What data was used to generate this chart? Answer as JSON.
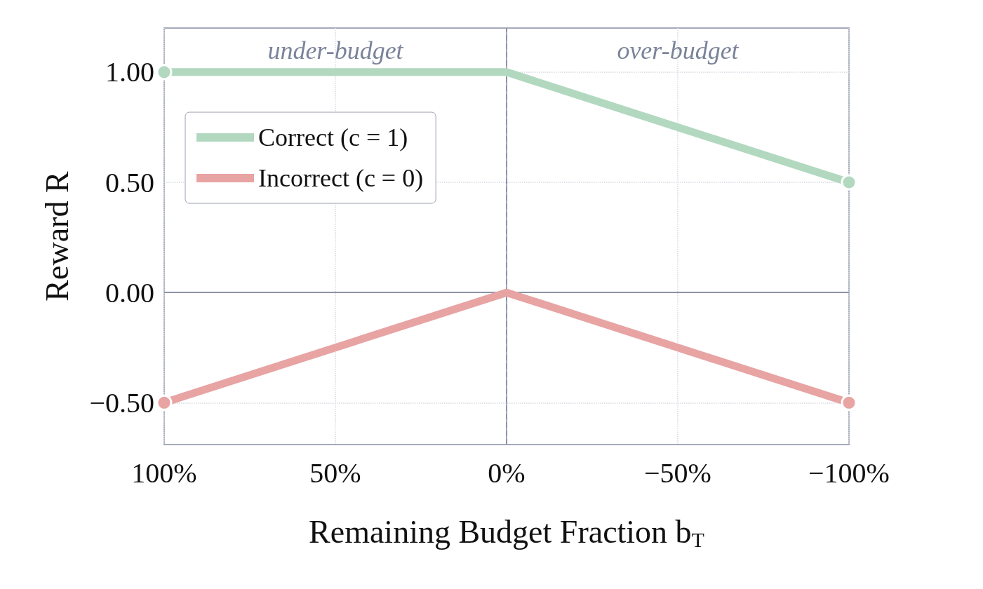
{
  "chart_data": {
    "type": "line",
    "xlabel": "Remaining Budget Fraction b$_{T}$",
    "ylabel": "Reward R",
    "x": [
      100,
      0,
      -100
    ],
    "series": [
      {
        "name": "Correct (c = 1)",
        "color": "#b2d8c0",
        "values": [
          1,
          1,
          0.5
        ]
      },
      {
        "name": "Incorrect (c = 0)",
        "color": "#e8a3a3",
        "values": [
          -0.5,
          0,
          -0.5
        ]
      }
    ],
    "xlim": [
      100,
      -100
    ],
    "xticks": [
      {
        "value": 100,
        "label": "100%"
      },
      {
        "value": 50,
        "label": "50%"
      },
      {
        "value": 0,
        "label": "0%"
      },
      {
        "value": -50,
        "label": "−50%"
      },
      {
        "value": -100,
        "label": "−100%"
      }
    ],
    "ylim": [
      -0.69,
      1.2
    ],
    "yticks": [
      {
        "value": -0.5,
        "label": "−0.50"
      },
      {
        "value": 0,
        "label": "0.00"
      },
      {
        "value": 0.5,
        "label": "0.50"
      },
      {
        "value": 1,
        "label": "1.00"
      }
    ],
    "ref_lines": [
      {
        "axis": "x",
        "value": 0,
        "color": "#8a93a8",
        "line_style": "dashed"
      },
      {
        "axis": "y",
        "value": 0,
        "color": "#8a93a8",
        "line_style": "solid"
      }
    ],
    "annotations": [
      "under-budget",
      "over-budget"
    ],
    "grid": true,
    "legend": "top left",
    "marker": "circle",
    "line_style": "solid"
  }
}
